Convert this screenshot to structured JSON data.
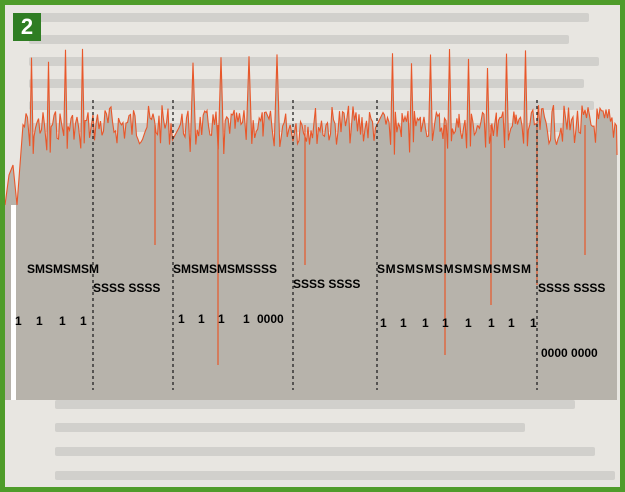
{
  "figure": {
    "number": "2"
  },
  "colors": {
    "border": "#4f9c2a",
    "badge": "#2f7d23",
    "trace": "#e8572a",
    "fill": "#b7b3ab",
    "background": "#e8e6e1"
  },
  "chart_data": {
    "type": "line",
    "description_free": true,
    "segments": [
      {
        "kind": "sync",
        "label": "SMSMSMSM",
        "bits": [
          "1",
          "1",
          "1",
          "1"
        ],
        "peaks": 4
      },
      {
        "kind": "spaces",
        "label": "SSSS SSSS",
        "bits": []
      },
      {
        "kind": "sync",
        "label": "SMSMSMSMSSSS",
        "bits": [
          "1",
          "1",
          "1",
          "1",
          "0000"
        ],
        "peaks": 4
      },
      {
        "kind": "spaces",
        "label": "SSSS SSSS",
        "bits": []
      },
      {
        "kind": "sync",
        "label": "SMSMSMSMSMSMSMSM",
        "bits": [
          "1",
          "1",
          "1",
          "1",
          "1",
          "1",
          "1",
          "1"
        ],
        "peaks": 8
      },
      {
        "kind": "spaces",
        "label": "SSSS SSSS",
        "bits": [
          "0000 0000"
        ]
      }
    ],
    "dividers": 6
  }
}
